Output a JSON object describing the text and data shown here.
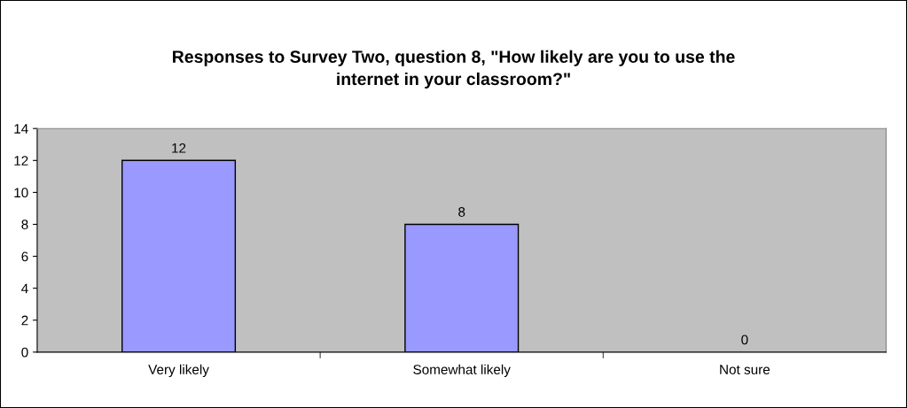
{
  "chart_data": {
    "type": "bar",
    "title": "Responses to Survey Two, question 8, \"How likely are you to use the internet in your classroom?\"",
    "categories": [
      "Very likely",
      "Somewhat likely",
      "Not sure"
    ],
    "values": [
      12,
      8,
      0
    ],
    "color": "#9999ff",
    "ylim": [
      0,
      14
    ],
    "yticks": [
      0,
      2,
      4,
      6,
      8,
      10,
      12,
      14
    ],
    "grid": false,
    "data_labels": true
  }
}
